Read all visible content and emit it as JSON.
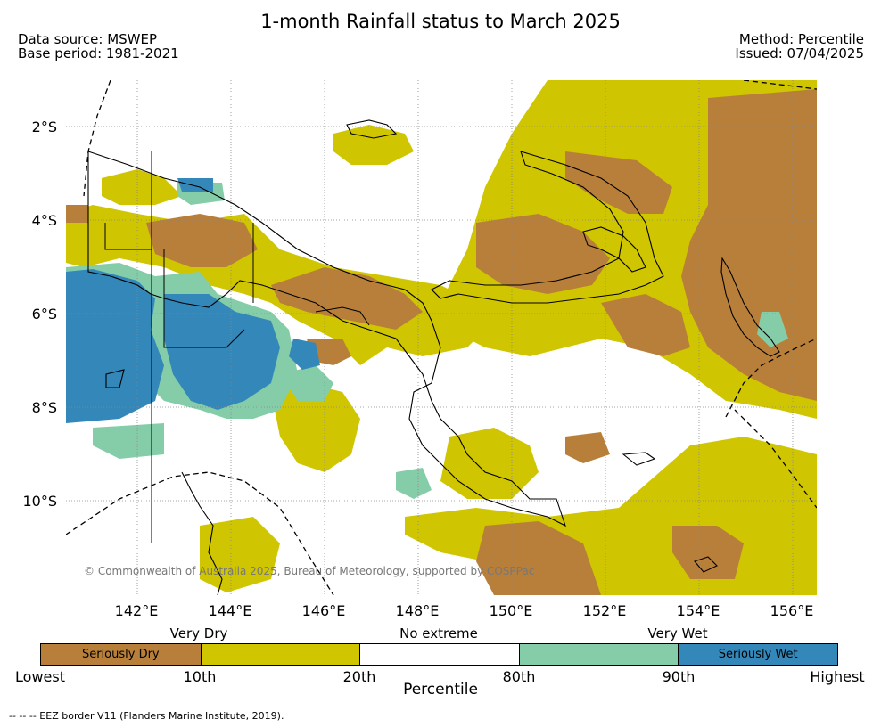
{
  "header": {
    "title": "1-month Rainfall status to March 2025",
    "data_source": "Data source: MSWEP",
    "base_period": "Base period: 1981-2021",
    "method": "Method: Percentile",
    "issued": "Issued: 07/04/2025"
  },
  "map": {
    "lat_labels": [
      "2°S",
      "4°S",
      "6°S",
      "8°S",
      "10°S"
    ],
    "lon_labels": [
      "142°E",
      "144°E",
      "146°E",
      "148°E",
      "150°E",
      "152°E",
      "154°E",
      "156°E"
    ],
    "credit": "© Commonwealth of Australia 2025, Bureau of Meteorology, supported by COSPPac"
  },
  "legend": {
    "groups": [
      "Very Dry",
      "No extreme",
      "Very Wet"
    ],
    "segments": [
      {
        "label": "Seriously Dry",
        "color": "#b87f3b"
      },
      {
        "label": "",
        "color": "#cfc500"
      },
      {
        "label": "",
        "color": "#ffffff"
      },
      {
        "label": "",
        "color": "#84cda8"
      },
      {
        "label": "Seriously Wet",
        "color": "#3487b9"
      }
    ],
    "ticks": [
      "Lowest",
      "10th",
      "20th",
      "80th",
      "90th",
      "Highest"
    ],
    "xlabel": "Percentile"
  },
  "footnote": "--  --  -- EEZ border V11 (Flanders Marine Institute, 2019)."
}
